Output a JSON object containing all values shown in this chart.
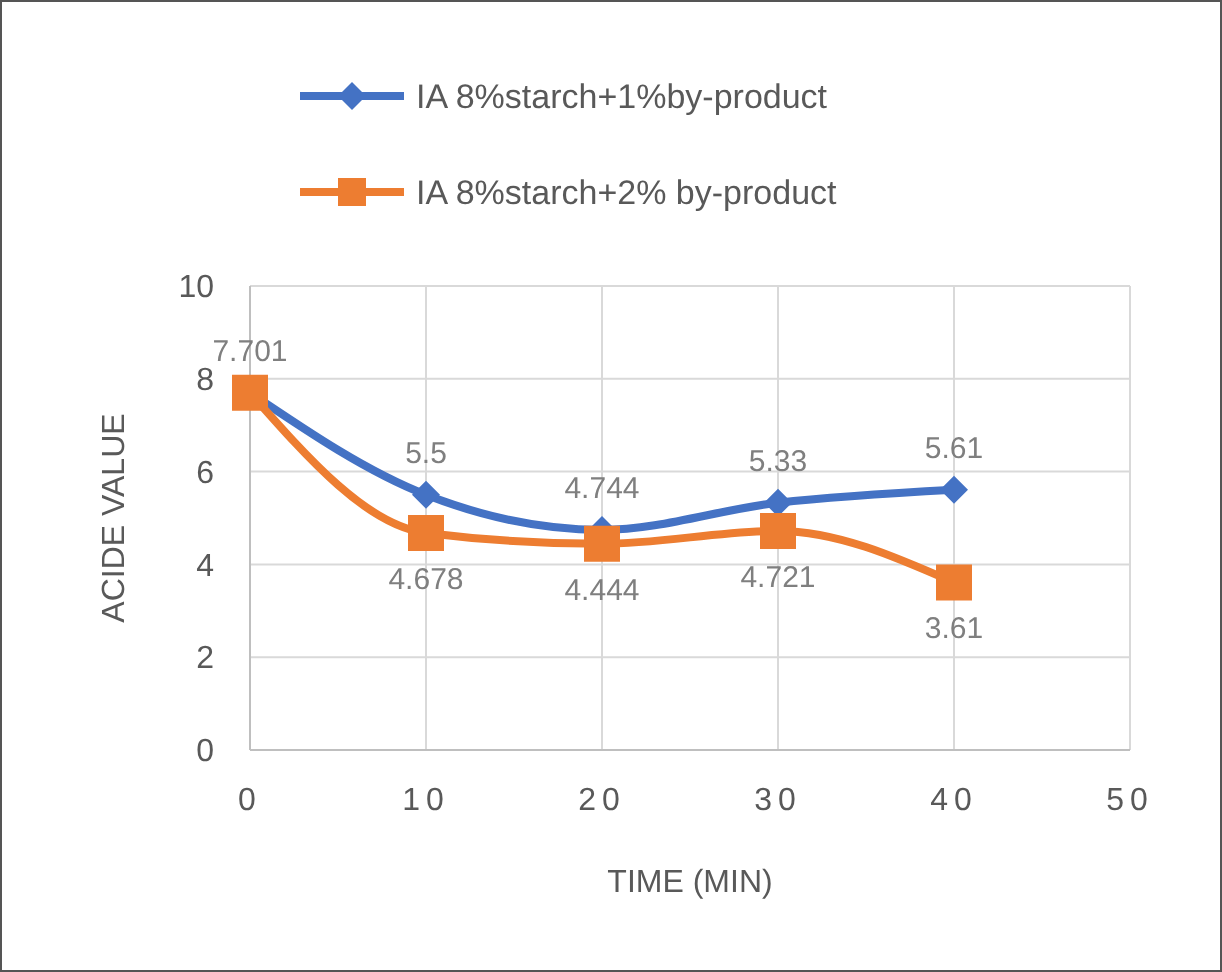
{
  "chart_data": {
    "type": "line",
    "xlabel": "TIME (MIN)",
    "ylabel": "ACIDE VALUE",
    "x": [
      0,
      10,
      20,
      30,
      40
    ],
    "series": [
      {
        "name": "IA 8%starch+1%by-product",
        "color": "#4472c4",
        "marker": "diamond",
        "values": [
          7.701,
          5.5,
          4.744,
          5.33,
          5.61
        ],
        "value_labels": [
          "7.701",
          "5.5",
          "4.744",
          "5.33",
          "5.61"
        ]
      },
      {
        "name": "IA 8%starch+2% by-product",
        "color": "#ed7d31",
        "marker": "square",
        "values": [
          7.701,
          4.678,
          4.444,
          4.721,
          3.61
        ],
        "value_labels": [
          null,
          "4.678",
          "4.444",
          "4.721",
          "3.61"
        ]
      }
    ],
    "xlim": [
      0,
      50
    ],
    "xticks": [
      0,
      10,
      20,
      30,
      40,
      50
    ],
    "ylim": [
      0,
      10
    ],
    "yticks": [
      0,
      2,
      4,
      6,
      8,
      10
    ],
    "grid": true,
    "legend": "top"
  }
}
